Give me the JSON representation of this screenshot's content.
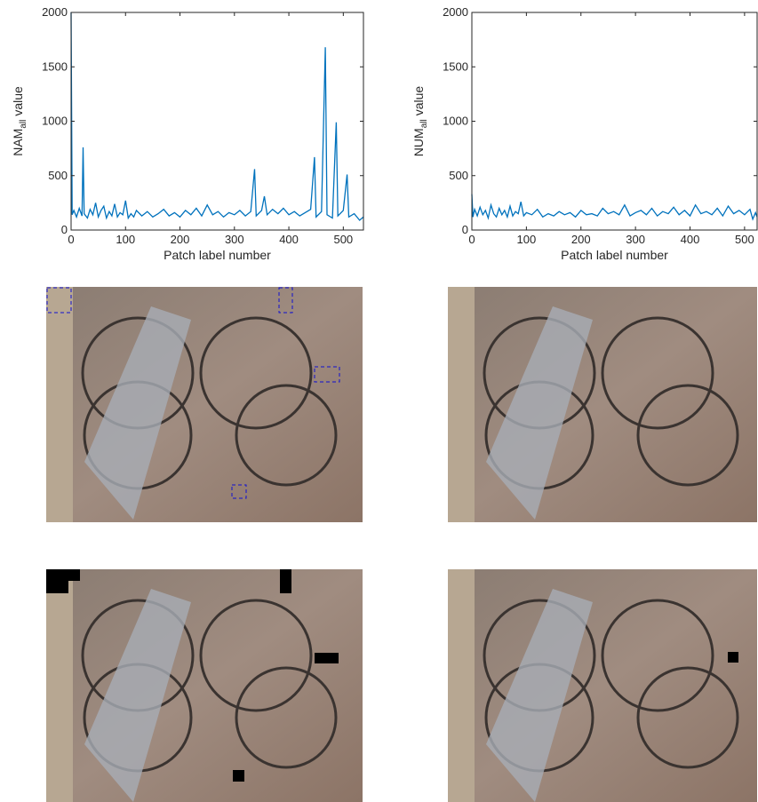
{
  "chart_data": [
    {
      "type": "line",
      "color": "#0072bd",
      "xlabel": "Patch label number",
      "ylabel": {
        "base": "NAM",
        "sub": "all",
        "tail": "value"
      },
      "xlim": [
        0,
        537
      ],
      "ylim": [
        0,
        2000
      ],
      "xticks": [
        0,
        100,
        200,
        300,
        400,
        500
      ],
      "yticks": [
        0,
        500,
        1000,
        1500,
        2000
      ],
      "x": [
        0,
        2,
        5,
        10,
        15,
        20,
        22,
        24,
        30,
        35,
        40,
        45,
        50,
        55,
        60,
        65,
        70,
        75,
        80,
        85,
        90,
        95,
        100,
        105,
        110,
        115,
        120,
        130,
        140,
        150,
        160,
        170,
        180,
        190,
        200,
        210,
        220,
        230,
        240,
        250,
        260,
        270,
        280,
        290,
        300,
        310,
        320,
        330,
        337,
        340,
        350,
        355,
        360,
        370,
        380,
        390,
        400,
        410,
        420,
        430,
        440,
        447,
        450,
        460,
        467,
        470,
        480,
        487,
        490,
        500,
        507,
        510,
        520,
        530,
        537
      ],
      "values": [
        2000,
        140,
        180,
        120,
        200,
        130,
        760,
        150,
        110,
        190,
        140,
        250,
        120,
        180,
        220,
        110,
        170,
        130,
        240,
        120,
        160,
        140,
        270,
        110,
        150,
        120,
        180,
        130,
        170,
        120,
        150,
        190,
        130,
        160,
        120,
        180,
        140,
        200,
        130,
        230,
        140,
        170,
        120,
        160,
        140,
        180,
        130,
        170,
        560,
        130,
        180,
        310,
        140,
        190,
        150,
        200,
        140,
        170,
        130,
        160,
        190,
        670,
        120,
        170,
        1680,
        140,
        110,
        990,
        130,
        180,
        510,
        120,
        150,
        90,
        120
      ]
    },
    {
      "type": "line",
      "color": "#0072bd",
      "xlabel": "Patch label number",
      "ylabel": {
        "base": "NUM",
        "sub": "all",
        "tail": "value"
      },
      "xlim": [
        0,
        523
      ],
      "ylim": [
        0,
        2000
      ],
      "xticks": [
        0,
        100,
        200,
        300,
        400,
        500
      ],
      "yticks": [
        0,
        500,
        1000,
        1500,
        2000
      ],
      "x": [
        0,
        2,
        5,
        10,
        15,
        20,
        25,
        30,
        35,
        40,
        45,
        50,
        55,
        60,
        65,
        70,
        75,
        80,
        85,
        90,
        95,
        100,
        110,
        120,
        130,
        140,
        150,
        160,
        170,
        180,
        190,
        200,
        210,
        220,
        230,
        240,
        250,
        260,
        270,
        280,
        290,
        300,
        310,
        320,
        330,
        340,
        350,
        360,
        370,
        380,
        390,
        400,
        410,
        420,
        430,
        440,
        450,
        460,
        470,
        480,
        490,
        500,
        510,
        515,
        520,
        523
      ],
      "values": [
        330,
        120,
        190,
        130,
        210,
        140,
        180,
        110,
        230,
        150,
        120,
        200,
        140,
        180,
        120,
        220,
        130,
        170,
        150,
        260,
        130,
        160,
        140,
        190,
        120,
        150,
        130,
        170,
        140,
        160,
        120,
        180,
        140,
        150,
        130,
        200,
        150,
        170,
        140,
        230,
        130,
        160,
        180,
        140,
        200,
        130,
        170,
        150,
        210,
        140,
        180,
        130,
        230,
        150,
        170,
        140,
        200,
        130,
        220,
        150,
        180,
        140,
        190,
        100,
        160,
        120
      ]
    }
  ]
}
